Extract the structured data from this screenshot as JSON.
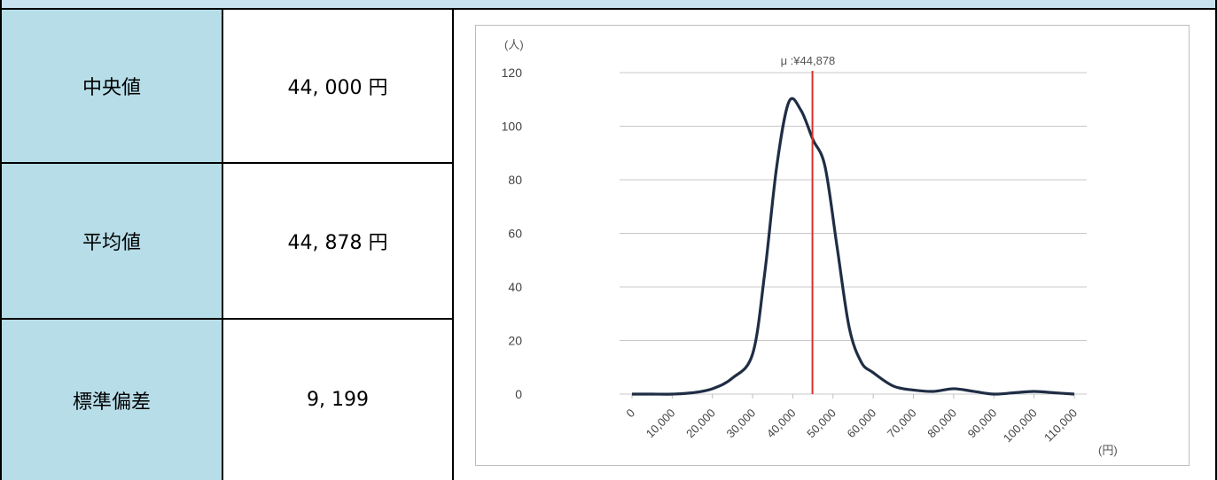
{
  "table": {
    "rows": [
      {
        "label": "中央値",
        "value": "44, 000 円"
      },
      {
        "label": "平均値",
        "value": "44, 878 円"
      },
      {
        "label": "標準偏差",
        "value": "9, 199"
      }
    ]
  },
  "chart_data": {
    "type": "line",
    "ylabel": "(人)",
    "xlabel": "(円)",
    "ylim": [
      0,
      120
    ],
    "yticks": [
      "0",
      "20",
      "40",
      "60",
      "80",
      "100",
      "120"
    ],
    "x_tick_labels": [
      "0",
      "10,000",
      "20,000",
      "30,000",
      "40,000",
      "50,000",
      "60,000",
      "70,000",
      "80,000",
      "90,000",
      "100,000",
      "110,000"
    ],
    "xlim": [
      0,
      110000
    ],
    "grid": true,
    "series": [
      {
        "color": "#1f2d45",
        "x": [
          0,
          5000,
          10000,
          15000,
          20000,
          25000,
          30000,
          33000,
          36000,
          39000,
          42000,
          45000,
          48000,
          51000,
          54000,
          57000,
          60000,
          65000,
          70000,
          75000,
          80000,
          85000,
          90000,
          95000,
          100000,
          105000,
          110000
        ],
        "y": [
          0,
          0,
          0,
          0.5,
          2,
          6,
          15,
          45,
          85,
          109,
          106,
          95,
          85,
          55,
          25,
          12,
          8,
          3,
          1.5,
          1,
          2,
          1,
          0,
          0.5,
          1,
          0.5,
          0
        ]
      }
    ],
    "mean_line": {
      "x": 44878,
      "label": "μ :¥44,878",
      "color": "#d9322b"
    }
  }
}
